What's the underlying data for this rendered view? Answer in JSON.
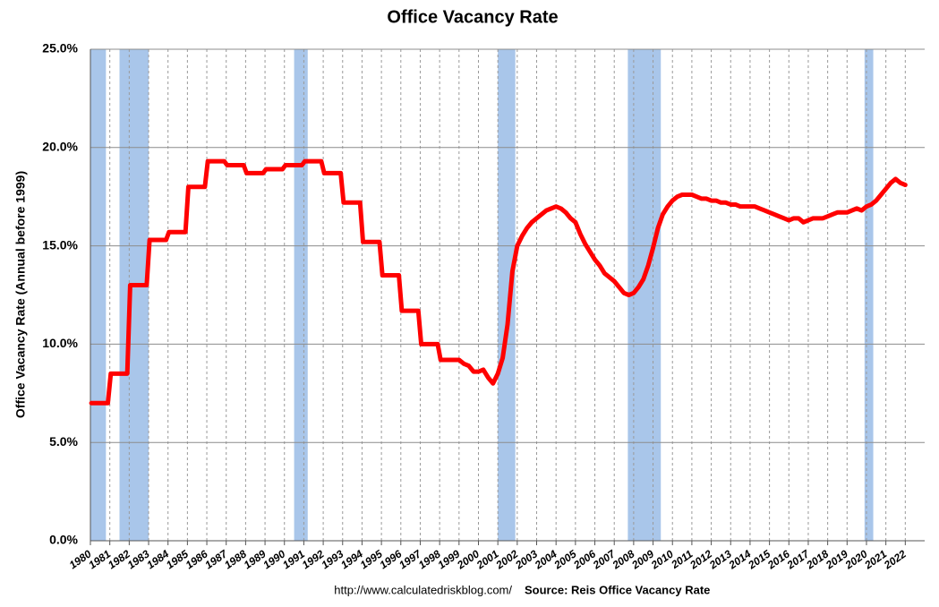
{
  "chart_data": {
    "type": "line",
    "title": "Office Vacancy Rate",
    "ylabel": "Office Vacancy Rate (Annual before 1999)",
    "footer_url": "http://www.calculatedriskblog.com/",
    "source": "Source: Reis Office Vacancy Rate",
    "color": "#ff0000",
    "recession_color": "#a9c6ea",
    "grid": true,
    "xlim": [
      1980,
      2023
    ],
    "xticks": [
      1980,
      1981,
      1982,
      1983,
      1984,
      1985,
      1986,
      1987,
      1988,
      1989,
      1990,
      1991,
      1992,
      1993,
      1994,
      1995,
      1996,
      1997,
      1998,
      1999,
      2000,
      2001,
      2002,
      2003,
      2004,
      2005,
      2006,
      2007,
      2008,
      2009,
      2010,
      2011,
      2012,
      2013,
      2014,
      2015,
      2016,
      2017,
      2018,
      2019,
      2020,
      2021,
      2022
    ],
    "ylim": [
      0,
      25
    ],
    "yticks": [
      {
        "value": 0,
        "label": "0.0%"
      },
      {
        "value": 5,
        "label": "5.0%"
      },
      {
        "value": 10,
        "label": "10.0%"
      },
      {
        "value": 15,
        "label": "15.0%"
      },
      {
        "value": 20,
        "label": "20.0%"
      },
      {
        "value": 25,
        "label": "25.0%"
      }
    ],
    "recessions": [
      [
        1980.0,
        1980.8
      ],
      [
        1981.5,
        1983.0
      ],
      [
        1990.5,
        1991.2
      ],
      [
        2001.0,
        2001.9
      ],
      [
        2007.7,
        2009.4
      ],
      [
        2019.9,
        2020.35
      ]
    ],
    "x": [
      1980.05,
      1980.9,
      1981.05,
      1981.9,
      1982.05,
      1982.9,
      1983.05,
      1983.9,
      1984.05,
      1984.9,
      1985.05,
      1985.9,
      1986.05,
      1986.9,
      1987.05,
      1987.9,
      1988.05,
      1988.9,
      1989.05,
      1989.9,
      1990.05,
      1990.9,
      1991.05,
      1991.9,
      1992.05,
      1992.9,
      1993.05,
      1993.9,
      1994.05,
      1994.9,
      1995.05,
      1995.9,
      1996.05,
      1996.9,
      1997.05,
      1997.9,
      1998.05,
      1998.9,
      1999,
      1999.25,
      1999.5,
      1999.75,
      2000,
      2000.25,
      2000.5,
      2000.75,
      2001,
      2001.25,
      2001.5,
      2001.75,
      2002,
      2002.25,
      2002.5,
      2002.75,
      2003,
      2003.25,
      2003.5,
      2003.75,
      2004,
      2004.25,
      2004.5,
      2004.75,
      2005,
      2005.25,
      2005.5,
      2005.75,
      2006,
      2006.25,
      2006.5,
      2006.75,
      2007,
      2007.25,
      2007.5,
      2007.75,
      2008,
      2008.25,
      2008.5,
      2008.75,
      2009,
      2009.25,
      2009.5,
      2009.75,
      2010,
      2010.25,
      2010.5,
      2010.75,
      2011,
      2011.25,
      2011.5,
      2011.75,
      2012,
      2012.25,
      2012.5,
      2012.75,
      2013,
      2013.25,
      2013.5,
      2013.75,
      2014,
      2014.25,
      2014.5,
      2014.75,
      2015,
      2015.25,
      2015.5,
      2015.75,
      2016,
      2016.25,
      2016.5,
      2016.75,
      2017,
      2017.25,
      2017.5,
      2017.75,
      2018,
      2018.25,
      2018.5,
      2018.75,
      2019,
      2019.25,
      2019.5,
      2019.75,
      2020,
      2020.25,
      2020.5,
      2020.75,
      2021,
      2021.25,
      2021.5,
      2021.75,
      2022
    ],
    "values": [
      7,
      7,
      8.5,
      8.5,
      13,
      13,
      15.3,
      15.3,
      15.7,
      15.7,
      18,
      18,
      19.3,
      19.3,
      19.1,
      19.1,
      18.7,
      18.7,
      18.9,
      18.9,
      19.1,
      19.1,
      19.3,
      19.3,
      18.7,
      18.7,
      17.2,
      17.2,
      15.2,
      15.2,
      13.5,
      13.5,
      11.7,
      11.7,
      10,
      10,
      9.2,
      9.2,
      9.2,
      9.0,
      8.9,
      8.6,
      8.6,
      8.7,
      8.3,
      8.0,
      8.5,
      9.3,
      11.0,
      13.7,
      15.0,
      15.5,
      15.9,
      16.2,
      16.4,
      16.6,
      16.8,
      16.9,
      17.0,
      16.9,
      16.7,
      16.4,
      16.2,
      15.6,
      15.1,
      14.7,
      14.3,
      14.0,
      13.6,
      13.4,
      13.2,
      12.9,
      12.6,
      12.5,
      12.6,
      12.9,
      13.3,
      14.0,
      14.9,
      15.9,
      16.6,
      17.0,
      17.3,
      17.5,
      17.6,
      17.6,
      17.6,
      17.5,
      17.4,
      17.4,
      17.3,
      17.3,
      17.2,
      17.2,
      17.1,
      17.1,
      17.0,
      17.0,
      17.0,
      17.0,
      16.9,
      16.8,
      16.7,
      16.6,
      16.5,
      16.4,
      16.3,
      16.4,
      16.4,
      16.2,
      16.3,
      16.4,
      16.4,
      16.4,
      16.5,
      16.6,
      16.7,
      16.7,
      16.7,
      16.8,
      16.9,
      16.8,
      17.0,
      17.1,
      17.3,
      17.6,
      17.9,
      18.2,
      18.4,
      18.2,
      18.1
    ]
  }
}
